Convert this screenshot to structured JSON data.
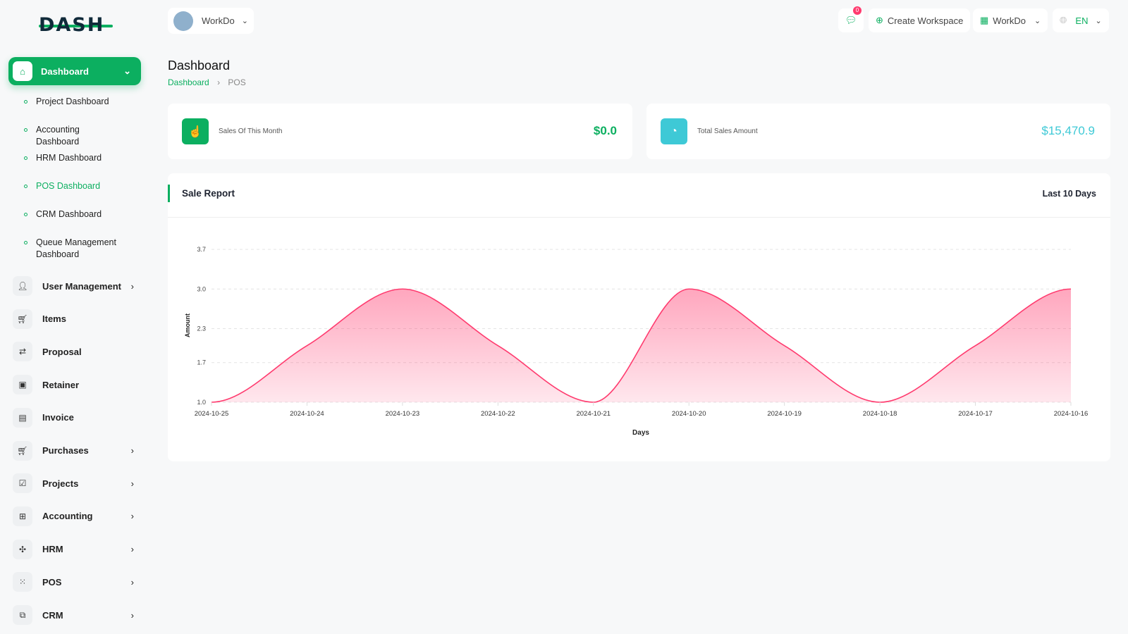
{
  "brand": {
    "logo": "DASH",
    "accent": "#0caf60"
  },
  "sidebar": {
    "active": {
      "label": "Dashboard",
      "icon": "home-icon"
    },
    "subitems": [
      {
        "label": "Project Dashboard"
      },
      {
        "label": "Accounting Dashboard"
      },
      {
        "label": "HRM Dashboard"
      },
      {
        "label": "POS Dashboard",
        "active": true
      },
      {
        "label": "CRM Dashboard"
      },
      {
        "label": "Queue Management Dashboard"
      }
    ],
    "items": [
      {
        "label": "User Management",
        "icon": "users-icon",
        "chevron": true
      },
      {
        "label": "Items",
        "icon": "cart-icon"
      },
      {
        "label": "Proposal",
        "icon": "proposal-icon"
      },
      {
        "label": "Retainer",
        "icon": "retainer-icon"
      },
      {
        "label": "Invoice",
        "icon": "invoice-icon"
      },
      {
        "label": "Purchases",
        "icon": "cart-icon",
        "chevron": true
      },
      {
        "label": "Projects",
        "icon": "checkbox-icon",
        "chevron": true
      },
      {
        "label": "Accounting",
        "icon": "grid-plus-icon",
        "chevron": true
      },
      {
        "label": "HRM",
        "icon": "hrm-icon",
        "chevron": true
      },
      {
        "label": "POS",
        "icon": "dots-grid-icon",
        "chevron": true
      },
      {
        "label": "CRM",
        "icon": "crm-icon",
        "chevron": true
      }
    ]
  },
  "topbar": {
    "workspace": "WorkDo",
    "notifications": "0",
    "create_workspace": "Create Workspace",
    "workspace_menu": "WorkDo",
    "language": "EN"
  },
  "header": {
    "title": "Dashboard",
    "breadcrumb": [
      "Dashboard",
      "POS"
    ]
  },
  "stats": [
    {
      "label": "Sales Of This Month",
      "value": "$0.0",
      "color": "#0caf60",
      "icon": "hand-pointer-icon"
    },
    {
      "label": "Total Sales Amount",
      "value": "$15,470.9",
      "color": "#3ec9d6",
      "icon": "pie-chart-icon"
    }
  ],
  "report": {
    "title": "Sale Report",
    "period": "Last 10 Days"
  },
  "chart_data": {
    "type": "area",
    "x": [
      "2024-10-25",
      "2024-10-24",
      "2024-10-23",
      "2024-10-22",
      "2024-10-21",
      "2024-10-20",
      "2024-10-19",
      "2024-10-18",
      "2024-10-17",
      "2024-10-16"
    ],
    "values": [
      1,
      2,
      3,
      2,
      1,
      3,
      2,
      1,
      2,
      3
    ],
    "yticks": [
      "1.0",
      "1.7",
      "2.3",
      "3.0",
      "3.7"
    ],
    "ylim": [
      1,
      3.7
    ],
    "xlabel": "Days",
    "ylabel": "Amount",
    "grid": true,
    "color": "#ff3a6e"
  }
}
